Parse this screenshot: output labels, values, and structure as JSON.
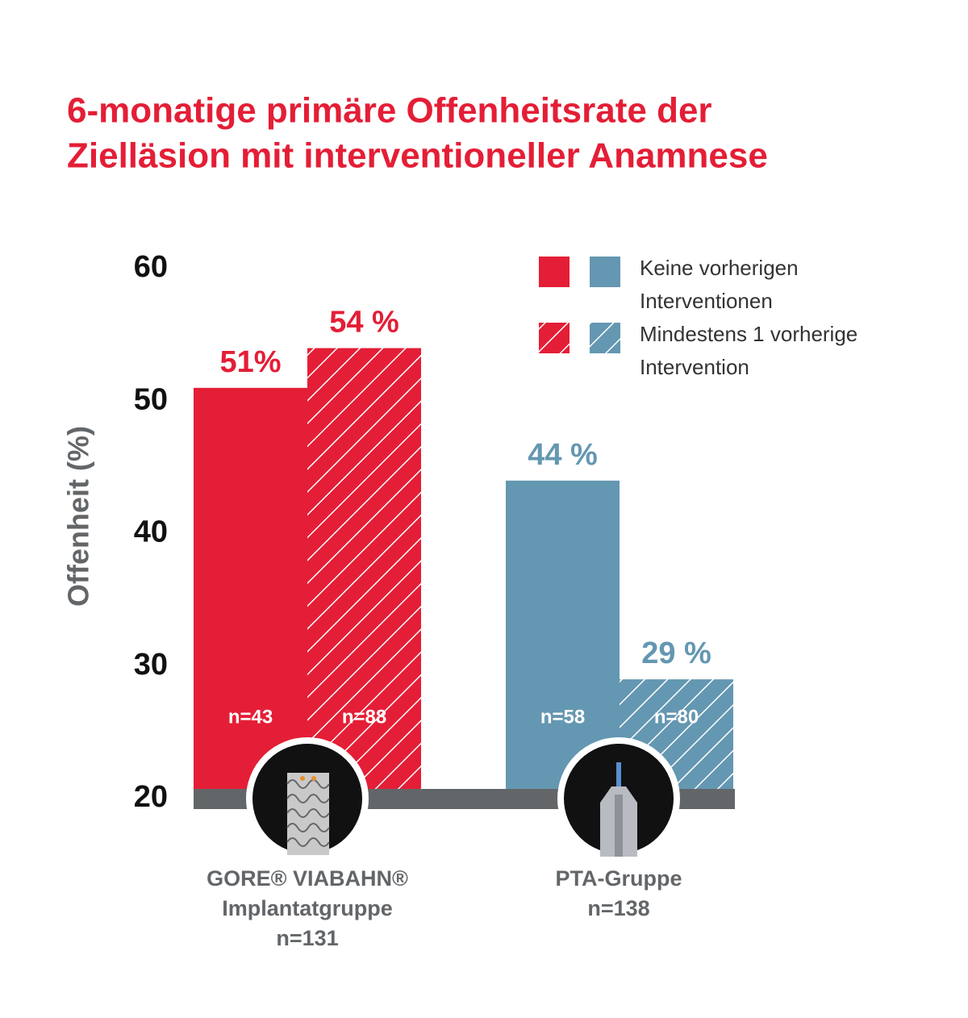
{
  "chart_data": {
    "type": "bar",
    "title": [
      "6-monatige primäre Offenheitsrate der",
      "Zielläsion mit interventioneller Anamnese"
    ],
    "y_label": "Offenheit (%)",
    "categories": [
      [
        "GORE® VIABAHN®",
        "Implantatgruppe"
      ],
      [
        "PTA-Gruppe"
      ]
    ],
    "category_sizes": [
      "n=131",
      "n=138"
    ],
    "group_colors": [
      "#e41e36",
      "#6497b1"
    ],
    "series": [
      {
        "name": "Keine vorherigen Interventionen",
        "pattern": "solid",
        "values": [
          51,
          44
        ],
        "value_labels": [
          "51%",
          "44 %"
        ],
        "n_labels": [
          "n=43",
          "n=58"
        ]
      },
      {
        "name": "Mindestens 1 vorherige Intervention",
        "pattern": "hatched",
        "values": [
          54,
          29
        ],
        "value_labels": [
          "54 %",
          "29 %"
        ],
        "n_labels": [
          "n=88",
          "n=80"
        ]
      }
    ],
    "ylim": [
      20,
      60
    ],
    "yticks": [
      20,
      30,
      40,
      50,
      60
    ]
  }
}
